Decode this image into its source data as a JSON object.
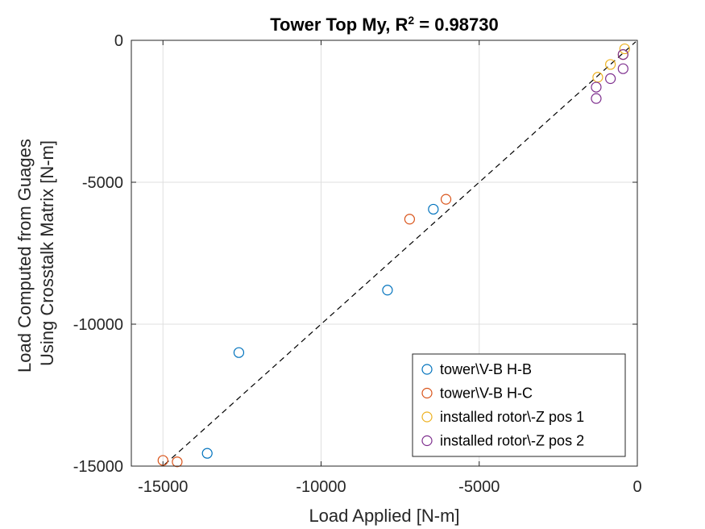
{
  "chart_data": {
    "type": "scatter",
    "title": "Tower Top My, R",
    "title_sup": "2",
    "title_suffix": " = 0.98730",
    "xlabel": "Load Applied [N-m]",
    "ylabel": [
      "Load Computed from Guages",
      "Using Crosstalk Matrix [N-m]"
    ],
    "xlim": [
      -16000,
      0
    ],
    "ylim": [
      -15000,
      0
    ],
    "xticks": [
      -15000,
      -10000,
      -5000,
      0
    ],
    "yticks": [
      -15000,
      -10000,
      -5000,
      0
    ],
    "xtick_labels": [
      "-15000",
      "-10000",
      "-5000",
      "0"
    ],
    "ytick_labels": [
      "-15000",
      "-10000",
      "-5000",
      "0"
    ],
    "grid": true,
    "legend_position": "bottom-right",
    "reference_line": {
      "style": "dashed",
      "color": "#000000",
      "x": [
        -14950,
        -50
      ],
      "y": [
        -14950,
        -50
      ]
    },
    "series": [
      {
        "name": "tower\\V-B H-B",
        "color": "#0072BD",
        "x": [
          -13600,
          -12600,
          -7900,
          -6450
        ],
        "y": [
          -14550,
          -11000,
          -8800,
          -5950
        ]
      },
      {
        "name": "tower\\V-B H-C",
        "color": "#D95319",
        "x": [
          -15000,
          -14550,
          -7200,
          -6050
        ],
        "y": [
          -14800,
          -14850,
          -6300,
          -5600
        ]
      },
      {
        "name": "installed rotor\\-Z pos 1",
        "color": "#EDB120",
        "x": [
          -1250,
          -850,
          -450,
          -400
        ],
        "y": [
          -1300,
          -850,
          -500,
          -300
        ]
      },
      {
        "name": "installed rotor\\-Z pos 2",
        "color": "#7E2F8E",
        "x": [
          -1300,
          -1300,
          -850,
          -450,
          -450
        ],
        "y": [
          -2050,
          -1650,
          -1350,
          -1000,
          -500
        ]
      }
    ]
  }
}
